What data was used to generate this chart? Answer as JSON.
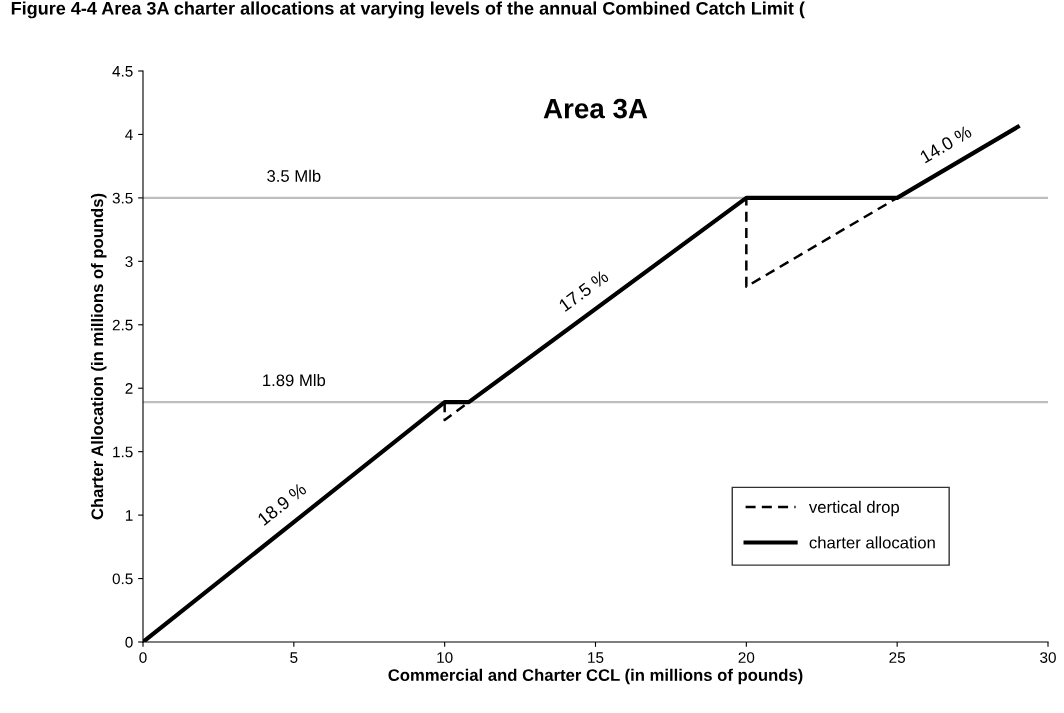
{
  "chart_data": {
    "type": "line",
    "title": "Figure 4-4 Area 3A charter allocations at varying levels of the annual Combined Catch Limit (",
    "subtitle": "Area 3A",
    "xlabel": "Commercial and Charter CCL (in millions of pounds)",
    "ylabel": "Charter Allocation (in millions of pounds)",
    "series": [
      {
        "name": "vertical drop",
        "color": "#000000",
        "line_style": "dashed",
        "x": [
          10,
          10,
          10.8,
          20,
          20,
          25
        ],
        "values": [
          1.89,
          1.75,
          1.89,
          3.5,
          2.8,
          3.5
        ]
      },
      {
        "name": "charter allocation",
        "color": "#000000",
        "line_style": "solid",
        "x": [
          0,
          10,
          10.8,
          20,
          25,
          29
        ],
        "values": [
          0,
          1.89,
          1.89,
          3.5,
          3.5,
          4.06
        ]
      }
    ],
    "ref_lines": [
      {
        "axis": "y",
        "value": 1.89,
        "label": "1.89 Mlb",
        "color": "#bfbfbf"
      },
      {
        "axis": "y",
        "value": 3.5,
        "label": "3.5 Mlb",
        "color": "#bfbfbf"
      }
    ],
    "annotations": [
      {
        "text": "18.9 %",
        "x": 5,
        "y": 0.945
      },
      {
        "text": "17.5 %",
        "x": 15,
        "y": 2.625
      },
      {
        "text": "14.0 %",
        "x": 27,
        "y": 3.78
      }
    ],
    "xlim": [
      0,
      30
    ],
    "ylim": [
      0,
      4.5
    ],
    "xticks": [
      0,
      5,
      10,
      15,
      20,
      25,
      30
    ],
    "yticks": [
      0,
      0.5,
      1,
      1.5,
      2,
      2.5,
      3,
      3.5,
      4,
      4.5
    ],
    "grid": false,
    "legend": "bottom right",
    "marker": "none"
  }
}
